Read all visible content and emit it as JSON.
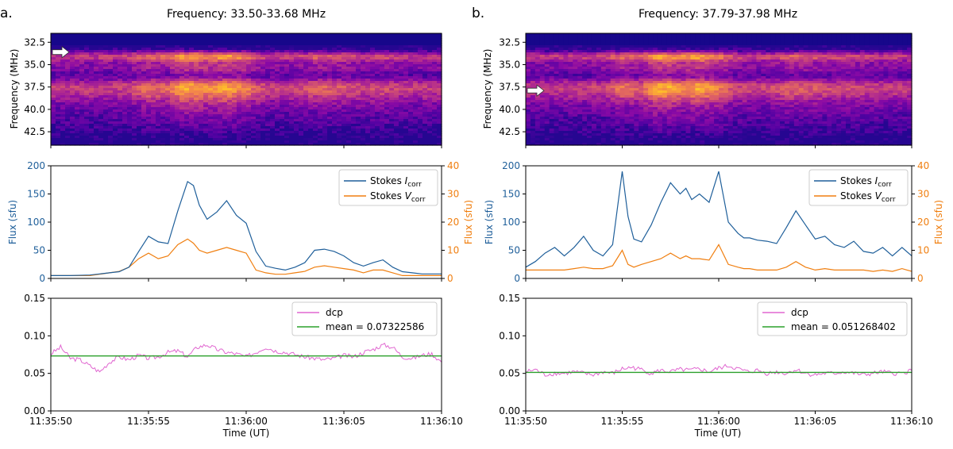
{
  "figure": {
    "time_ticks": [
      "11:35:50",
      "11:35:55",
      "11:36:00",
      "11:36:05",
      "11:36:10"
    ],
    "time_label": "Time (UT)"
  },
  "chart_data": [
    {
      "panel": "a.",
      "title": "Frequency: 33.50-33.68 MHz",
      "colors": {
        "stokes_i": "#1f5f9a",
        "stokes_v": "#f07f10",
        "dcp": "#e066d0",
        "mean": "#2ca02c"
      },
      "spectrogram": {
        "type": "heatmap",
        "ylabel": "Frequency (MHz)",
        "ylim": [
          44.0,
          31.5
        ],
        "yticks": [
          "32.5",
          "35.0",
          "37.5",
          "40.0",
          "42.5"
        ],
        "arrow_freq": 33.6,
        "colormap": "plasma",
        "bands": [
          {
            "freq": 34.1,
            "width": 0.6,
            "intensity": 0.75
          },
          {
            "freq": 35.3,
            "width": 0.8,
            "intensity": 0.45
          },
          {
            "freq": 37.2,
            "width": 0.9,
            "intensity": 0.55
          },
          {
            "freq": 38.2,
            "width": 1.0,
            "intensity": 0.45
          },
          {
            "freq": 39.5,
            "width": 1.4,
            "intensity": 0.3
          },
          {
            "freq": 41.5,
            "width": 1.5,
            "intensity": 0.18
          }
        ]
      },
      "flux": {
        "type": "line",
        "ylabel_left": "Flux (sfu)",
        "ylabel_right": "Flux (sfu)",
        "ylim_left": [
          0,
          200
        ],
        "ylim_right": [
          0,
          40
        ],
        "yticks_left": [
          "0",
          "50",
          "100",
          "150",
          "200"
        ],
        "yticks_right": [
          "0",
          "10",
          "20",
          "30",
          "40"
        ],
        "legend": [
          {
            "base": "Stokes ",
            "italic": "I",
            "sub": "corr"
          },
          {
            "base": "Stokes ",
            "italic": "V",
            "sub": "corr"
          }
        ],
        "x": [
          0,
          1,
          2,
          2.5,
          3,
          3.5,
          4,
          4.5,
          5,
          5.5,
          6,
          6.5,
          7,
          7.3,
          7.6,
          8,
          8.5,
          9,
          9.5,
          10,
          10.5,
          11,
          11.5,
          12,
          12.5,
          13,
          13.5,
          14,
          14.5,
          15,
          15.5,
          16,
          16.5,
          17,
          17.5,
          18,
          18.5,
          19,
          19.5,
          20
        ],
        "stokes_i": [
          5,
          5,
          6,
          8,
          10,
          12,
          20,
          48,
          75,
          65,
          62,
          120,
          172,
          165,
          130,
          105,
          118,
          138,
          112,
          98,
          48,
          22,
          18,
          15,
          20,
          28,
          50,
          52,
          48,
          40,
          28,
          22,
          28,
          33,
          20,
          12,
          10,
          8,
          8,
          8
        ],
        "stokes_v": [
          1,
          1,
          1,
          1.5,
          2,
          2.5,
          4,
          7,
          9,
          7,
          8,
          12,
          14,
          12.5,
          10,
          9,
          10,
          11,
          10,
          9,
          3,
          2,
          1.5,
          1.5,
          2,
          2.5,
          4,
          4.5,
          4,
          3.5,
          3,
          2,
          3,
          3,
          2,
          1,
          1,
          1,
          1,
          1
        ]
      },
      "dcp": {
        "type": "line",
        "ylim": [
          0.0,
          0.15
        ],
        "yticks": [
          "0.00",
          "0.05",
          "0.10",
          "0.15"
        ],
        "legend": [
          "dcp",
          "mean = 0.07322586"
        ],
        "mean": 0.07322586,
        "x": [
          0,
          0.5,
          1,
          1.5,
          2,
          2.5,
          3,
          3.5,
          4,
          4.5,
          5,
          5.5,
          6,
          6.5,
          7,
          7.5,
          8,
          8.5,
          9,
          9.5,
          10,
          10.5,
          11,
          11.5,
          12,
          12.5,
          13,
          13.5,
          14,
          14.5,
          15,
          15.5,
          16,
          16.5,
          17,
          17.5,
          18,
          18.5,
          19,
          19.5,
          20
        ],
        "values": [
          0.076,
          0.085,
          0.07,
          0.068,
          0.06,
          0.052,
          0.065,
          0.072,
          0.068,
          0.074,
          0.07,
          0.072,
          0.078,
          0.08,
          0.072,
          0.085,
          0.088,
          0.082,
          0.078,
          0.076,
          0.072,
          0.078,
          0.085,
          0.08,
          0.078,
          0.075,
          0.072,
          0.07,
          0.068,
          0.07,
          0.074,
          0.072,
          0.078,
          0.082,
          0.088,
          0.085,
          0.072,
          0.07,
          0.074,
          0.076,
          0.065
        ]
      }
    },
    {
      "panel": "b.",
      "title": "Frequency: 37.79-37.98 MHz",
      "colors": {
        "stokes_i": "#1f5f9a",
        "stokes_v": "#f07f10",
        "dcp": "#e066d0",
        "mean": "#2ca02c"
      },
      "spectrogram": {
        "type": "heatmap",
        "ylabel": "Frequency (MHz)",
        "ylim": [
          44.0,
          31.5
        ],
        "yticks": [
          "32.5",
          "35.0",
          "37.5",
          "40.0",
          "42.5"
        ],
        "arrow_freq": 37.9,
        "colormap": "plasma",
        "bands": [
          {
            "freq": 34.1,
            "width": 0.6,
            "intensity": 0.75
          },
          {
            "freq": 35.3,
            "width": 0.8,
            "intensity": 0.45
          },
          {
            "freq": 37.2,
            "width": 0.9,
            "intensity": 0.55
          },
          {
            "freq": 38.2,
            "width": 1.0,
            "intensity": 0.45
          },
          {
            "freq": 39.5,
            "width": 1.4,
            "intensity": 0.3
          },
          {
            "freq": 41.5,
            "width": 1.5,
            "intensity": 0.18
          }
        ]
      },
      "flux": {
        "type": "line",
        "ylabel_left": "Flux (sfu)",
        "ylabel_right": "Flux (sfu)",
        "ylim_left": [
          0,
          200
        ],
        "ylim_right": [
          0,
          40
        ],
        "yticks_left": [
          "0",
          "50",
          "100",
          "150",
          "200"
        ],
        "yticks_right": [
          "0",
          "10",
          "20",
          "30",
          "40"
        ],
        "legend": [
          {
            "base": "Stokes ",
            "italic": "I",
            "sub": "corr"
          },
          {
            "base": "Stokes ",
            "italic": "V",
            "sub": "corr"
          }
        ],
        "x": [
          0,
          0.5,
          1,
          1.5,
          2,
          2.5,
          3,
          3.5,
          4,
          4.5,
          5,
          5.3,
          5.6,
          6,
          6.5,
          7,
          7.5,
          8,
          8.3,
          8.6,
          9,
          9.5,
          10,
          10.5,
          11,
          11.3,
          11.6,
          12,
          12.5,
          13,
          13.5,
          14,
          14.5,
          15,
          15.5,
          16,
          16.5,
          17,
          17.5,
          18,
          18.5,
          19,
          19.5,
          20
        ],
        "stokes_i": [
          20,
          30,
          45,
          55,
          40,
          55,
          75,
          50,
          40,
          60,
          190,
          110,
          70,
          65,
          95,
          135,
          170,
          150,
          160,
          140,
          150,
          135,
          190,
          100,
          80,
          72,
          72,
          68,
          66,
          62,
          90,
          120,
          95,
          70,
          75,
          60,
          55,
          66,
          48,
          45,
          55,
          40,
          55,
          40
        ],
        "stokes_v": [
          3,
          3,
          3,
          3,
          3,
          3.5,
          4,
          3.5,
          3.5,
          4.5,
          10,
          5,
          4,
          5,
          6,
          7,
          9,
          7,
          8,
          7,
          7,
          6.5,
          12,
          5,
          4,
          3.5,
          3.5,
          3,
          3,
          3,
          4,
          6,
          4,
          3,
          3.5,
          3,
          3,
          3,
          3,
          2.5,
          3,
          2.5,
          3.5,
          2.5
        ]
      },
      "dcp": {
        "type": "line",
        "ylim": [
          0.0,
          0.15
        ],
        "yticks": [
          "0.00",
          "0.05",
          "0.10",
          "0.15"
        ],
        "legend": [
          "dcp",
          "mean = 0.051268402"
        ],
        "mean": 0.051268402,
        "x": [
          0,
          0.5,
          1,
          1.5,
          2,
          2.5,
          3,
          3.5,
          4,
          4.5,
          5,
          5.5,
          6,
          6.5,
          7,
          7.5,
          8,
          8.5,
          9,
          9.5,
          10,
          10.5,
          11,
          11.5,
          12,
          12.5,
          13,
          13.5,
          14,
          14.5,
          15,
          15.5,
          16,
          16.5,
          17,
          17.5,
          18,
          18.5,
          19,
          19.5,
          20
        ],
        "values": [
          0.052,
          0.055,
          0.048,
          0.05,
          0.05,
          0.052,
          0.05,
          0.048,
          0.052,
          0.05,
          0.056,
          0.058,
          0.055,
          0.05,
          0.054,
          0.052,
          0.055,
          0.054,
          0.056,
          0.052,
          0.057,
          0.06,
          0.056,
          0.052,
          0.054,
          0.05,
          0.052,
          0.05,
          0.055,
          0.05,
          0.048,
          0.05,
          0.05,
          0.052,
          0.05,
          0.048,
          0.05,
          0.052,
          0.05,
          0.05,
          0.054
        ]
      }
    }
  ]
}
